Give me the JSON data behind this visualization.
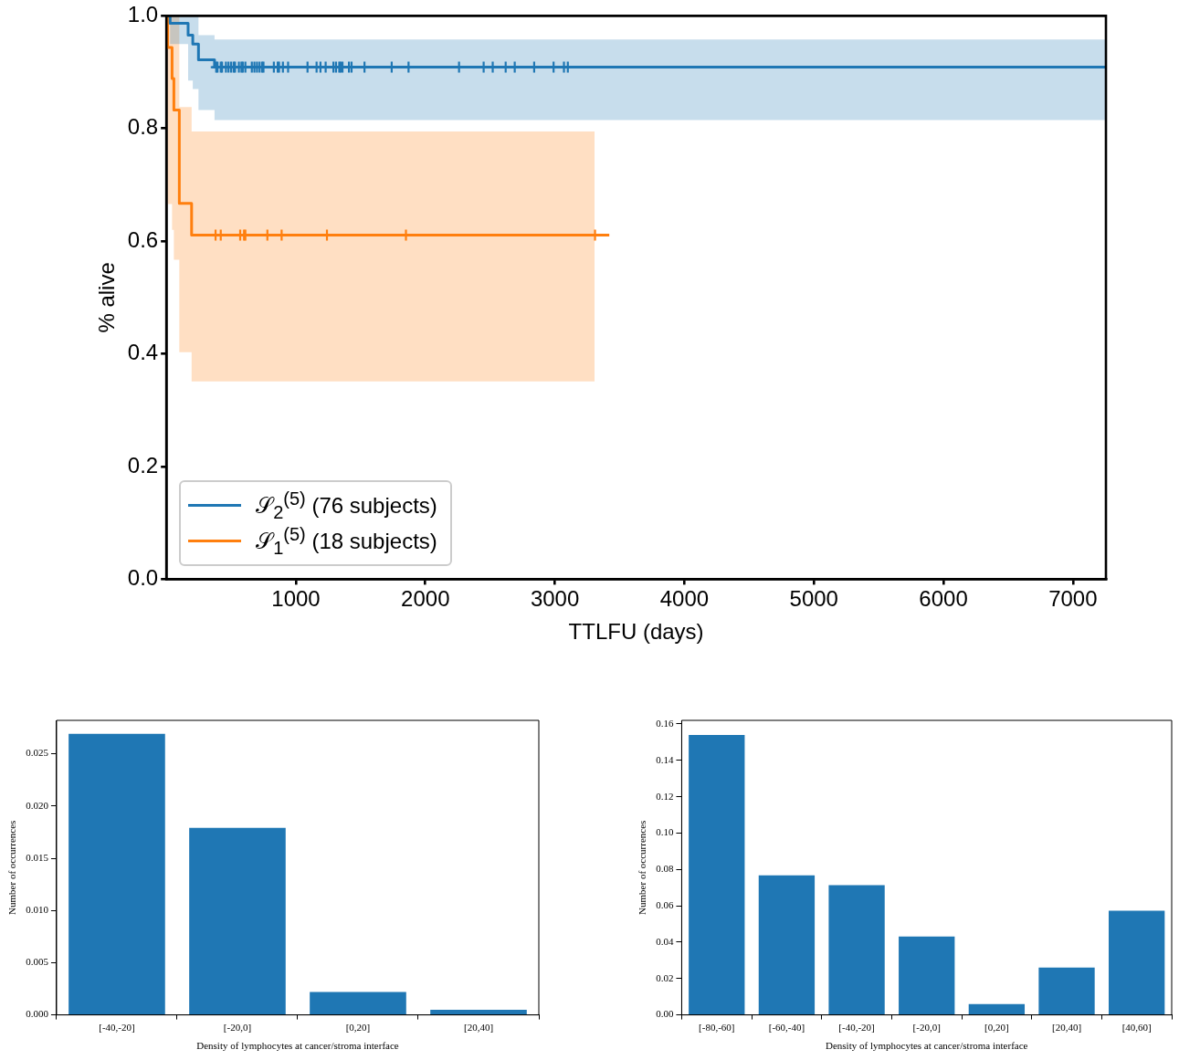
{
  "chart_data": [
    {
      "type": "step",
      "xlabel": "TTLFU (days)",
      "ylabel": "% alive",
      "xlim": [
        0,
        7255
      ],
      "ylim": [
        0,
        1
      ],
      "xticks": [
        1000,
        2000,
        3000,
        4000,
        5000,
        6000,
        7000
      ],
      "yticks": [
        {
          "value": 0,
          "label": "0.0"
        },
        0.2,
        0.4,
        0.6,
        0.8,
        {
          "value": 1,
          "label": "1.0"
        }
      ],
      "grid": false,
      "legend": "bottom left",
      "series": [
        {
          "name": "𝒮$_{2}$$^{(5)}$ (76 subjects)",
          "color": "#1f77b4",
          "type": "step",
          "x": [
            0,
            29,
            168,
            204,
            248,
            372,
            7255
          ],
          "values": [
            1,
            0.987,
            0.966,
            0.95,
            0.922,
            0.909,
            0.909
          ],
          "lower": [
            1,
            0.95,
            0.885,
            0.87,
            0.833,
            0.815,
            0.815
          ],
          "upper": [
            1,
            1,
            1,
            1,
            0.966,
            0.958,
            0.958
          ]
        },
        {
          "name": "𝒮$_{1}$$^{(5)}$ (18 subjects)",
          "color": "#ff7f0e",
          "type": "step",
          "x": [
            0,
            10,
            44,
            58,
            100,
            195,
            3307,
            3420
          ],
          "values": [
            1,
            0.944,
            0.889,
            0.833,
            0.667,
            0.611,
            0.611,
            0.611
          ],
          "lower": [
            1,
            0.666,
            0.62,
            0.567,
            0.403,
            0.351,
            0.351,
            null
          ],
          "upper": [
            1,
            1,
            1,
            1,
            0.838,
            0.795,
            0.795,
            null
          ]
        },
        {
          "color": "#1f77b4",
          "type": "scatter",
          "marker": "cross",
          "x": [
            385,
            395,
            420,
            430,
            460,
            480,
            500,
            520,
            530,
            560,
            580,
            590,
            610,
            660,
            680,
            700,
            720,
            740,
            750,
            830,
            860,
            870,
            900,
            940,
            1090,
            1160,
            1190,
            1230,
            1290,
            1310,
            1335,
            1345,
            1360,
            1410,
            1430,
            1530,
            1740,
            1870,
            2260,
            2450,
            2520,
            2620,
            2690,
            2840,
            2990,
            3070,
            3100
          ],
          "values": [
            0.909,
            0.909,
            0.909,
            0.909,
            0.909,
            0.909,
            0.909,
            0.909,
            0.909,
            0.909,
            0.909,
            0.909,
            0.909,
            0.909,
            0.909,
            0.909,
            0.909,
            0.909,
            0.909,
            0.909,
            0.909,
            0.909,
            0.909,
            0.909,
            0.909,
            0.909,
            0.909,
            0.909,
            0.909,
            0.909,
            0.909,
            0.909,
            0.909,
            0.909,
            0.909,
            0.909,
            0.909,
            0.909,
            0.909,
            0.909,
            0.909,
            0.909,
            0.909,
            0.909,
            0.909,
            0.909,
            0.909
          ]
        },
        {
          "color": "#ff7f0e",
          "type": "scatter",
          "marker": "cross",
          "x": [
            380,
            420,
            570,
            600,
            610,
            780,
            890,
            1240,
            1850,
            3310
          ],
          "values": [
            0.611,
            0.611,
            0.611,
            0.611,
            0.611,
            0.611,
            0.611,
            0.611,
            0.611,
            0.611
          ]
        }
      ]
    },
    {
      "type": "bar",
      "xlabel": "Density of lymphocytes at cancer/stroma interface",
      "ylabel": "Number of occurrences",
      "categories": [
        "[-40,-20]",
        "[-20,0]",
        "[0,20]",
        "[20,40]"
      ],
      "values": [
        0.0269,
        0.0179,
        0.0022,
        0.0005
      ],
      "color": "#1f77b4",
      "ylim": [
        0,
        0.0282
      ],
      "yticks": [
        {
          "value": 0,
          "label": "0.000"
        },
        {
          "value": 0.005,
          "label": "0.005"
        },
        {
          "value": 0.01,
          "label": "0.010"
        },
        {
          "value": 0.015,
          "label": "0.015"
        },
        {
          "value": 0.02,
          "label": "0.020"
        },
        {
          "value": 0.025,
          "label": "0.025"
        }
      ],
      "grid": false
    },
    {
      "type": "bar",
      "xlabel": "Density of lymphocytes at cancer/stroma interface",
      "ylabel": "Number of occurrences",
      "categories": [
        "[-80,-60]",
        "[-60,-40]",
        "[-40,-20]",
        "[-20,0]",
        "[0,20]",
        "[20,40]",
        "[40,60]"
      ],
      "values": [
        0.154,
        0.0767,
        0.0713,
        0.0431,
        0.006,
        0.0261,
        0.0573
      ],
      "color": "#1f77b4",
      "ylim": [
        0,
        0.162
      ],
      "yticks": [
        {
          "value": 0,
          "label": "0.00"
        },
        {
          "value": 0.02,
          "label": "0.02"
        },
        {
          "value": 0.04,
          "label": "0.04"
        },
        {
          "value": 0.06,
          "label": "0.06"
        },
        {
          "value": 0.08,
          "label": "0.08"
        },
        {
          "value": 0.1,
          "label": "0.10"
        },
        {
          "value": 0.12,
          "label": "0.12"
        },
        {
          "value": 0.14,
          "label": "0.14"
        },
        {
          "value": 0.16,
          "label": "0.16"
        }
      ],
      "grid": false
    }
  ]
}
